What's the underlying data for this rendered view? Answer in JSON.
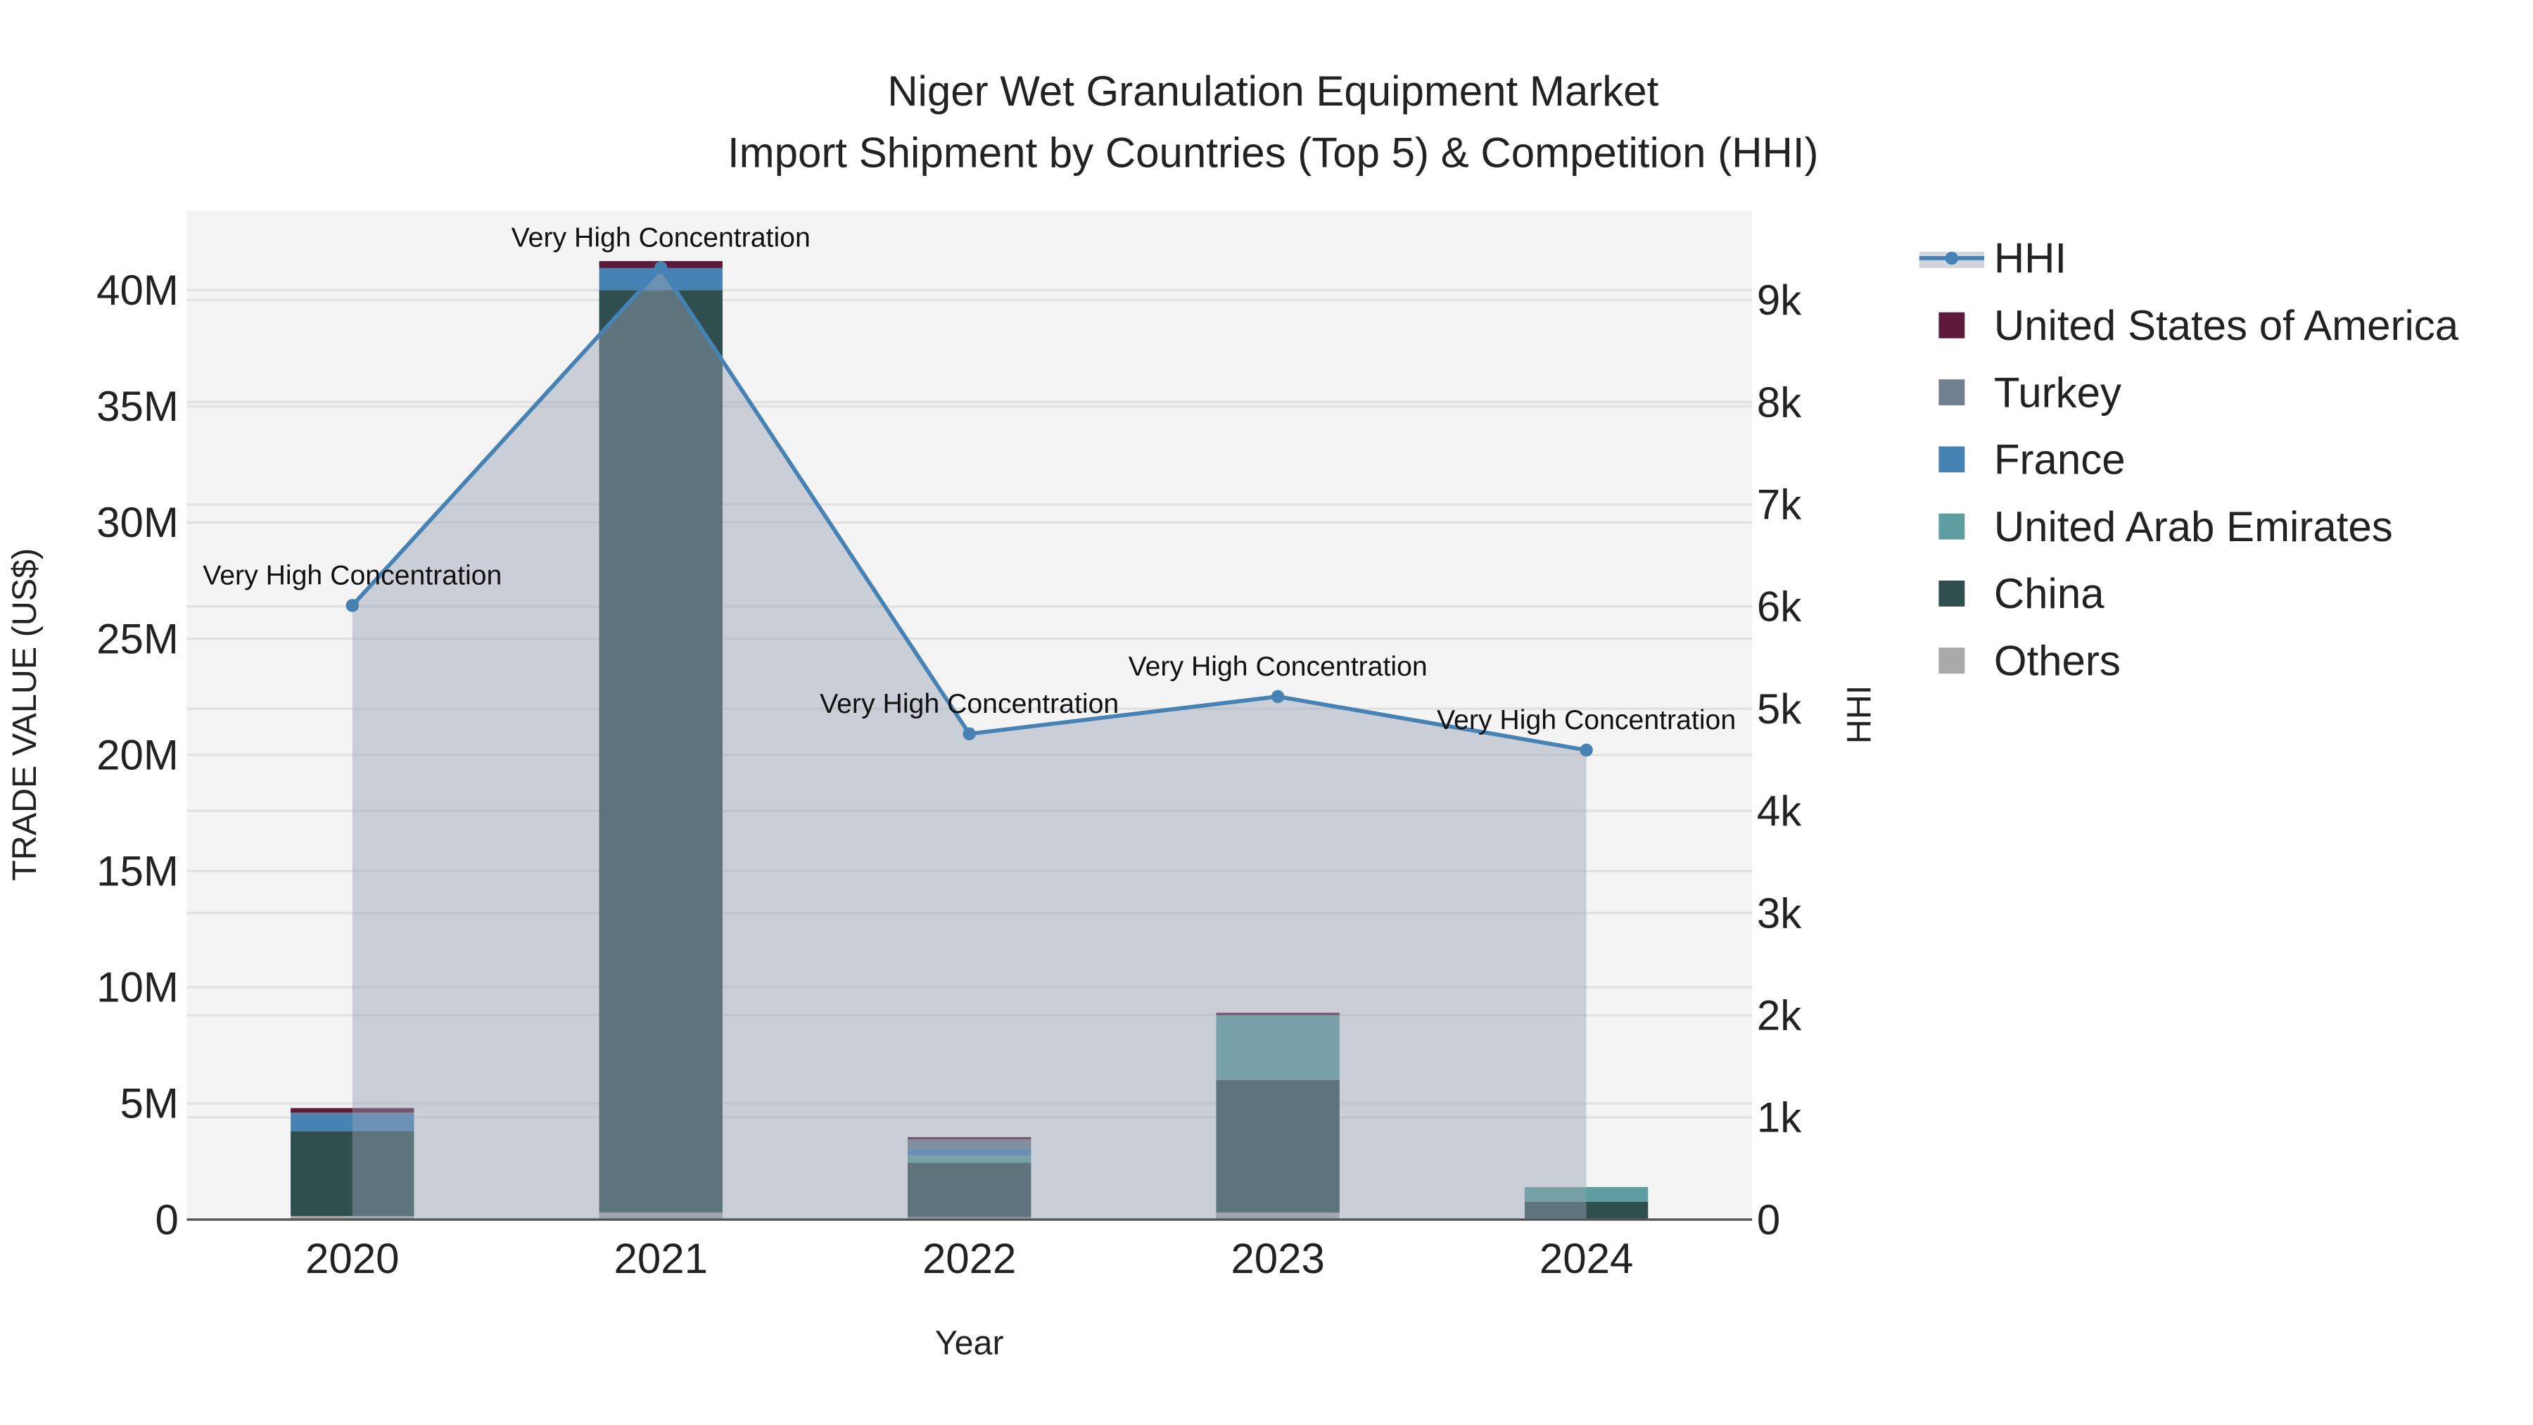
{
  "chart_data": {
    "type": "bar",
    "title": "Niger Wet Granulation Equipment Market",
    "subtitle": "Import Shipment by Countries (Top 5) & Competition (HHI)",
    "xlabel": "Year",
    "ylabel": "TRADE VALUE (US$)",
    "y2label": "HHI",
    "stacked": true,
    "categories": [
      "2020",
      "2021",
      "2022",
      "2023",
      "2024"
    ],
    "ylim": [
      0,
      43400000
    ],
    "y2lim": [
      0,
      9870
    ],
    "yticks": [
      {
        "v": 0,
        "label": "0"
      },
      {
        "v": 5000000,
        "label": "5M"
      },
      {
        "v": 10000000,
        "label": "10M"
      },
      {
        "v": 15000000,
        "label": "15M"
      },
      {
        "v": 20000000,
        "label": "20M"
      },
      {
        "v": 25000000,
        "label": "25M"
      },
      {
        "v": 30000000,
        "label": "30M"
      },
      {
        "v": 35000000,
        "label": "35M"
      },
      {
        "v": 40000000,
        "label": "40M"
      }
    ],
    "y2ticks": [
      {
        "v": 0,
        "label": "0"
      },
      {
        "v": 1000,
        "label": "1k"
      },
      {
        "v": 2000,
        "label": "2k"
      },
      {
        "v": 3000,
        "label": "3k"
      },
      {
        "v": 4000,
        "label": "4k"
      },
      {
        "v": 5000,
        "label": "5k"
      },
      {
        "v": 6000,
        "label": "6k"
      },
      {
        "v": 7000,
        "label": "7k"
      },
      {
        "v": 8000,
        "label": "8k"
      },
      {
        "v": 9000,
        "label": "9k"
      }
    ],
    "series": [
      {
        "name": "Others",
        "color": "#a9a9a9",
        "values": [
          150000,
          300000,
          100000,
          300000,
          50000
        ]
      },
      {
        "name": "China",
        "color": "#2f4f4f",
        "values": [
          3650000,
          39700000,
          2350000,
          5700000,
          720000
        ]
      },
      {
        "name": "United Arab Emirates",
        "color": "#5f9ea0",
        "values": [
          0,
          0,
          300000,
          2800000,
          630000
        ]
      },
      {
        "name": "France",
        "color": "#4682b4",
        "values": [
          750000,
          950000,
          300000,
          0,
          0
        ]
      },
      {
        "name": "Turkey",
        "color": "#708090",
        "values": [
          50000,
          0,
          400000,
          0,
          0
        ]
      },
      {
        "name": "United States of America",
        "color": "#5e1a3a",
        "values": [
          200000,
          300000,
          100000,
          100000,
          0
        ]
      }
    ],
    "hhi": {
      "name": "HHI",
      "color": "#4682b4",
      "values": [
        6010,
        9316,
        4754,
        5119,
        4595
      ],
      "annotations": [
        "Very High Concentration",
        "Very High Concentration",
        "Very High Concentration",
        "Very High Concentration",
        "Very High Concentration"
      ]
    },
    "legend": [
      "HHI",
      "United States of America",
      "Turkey",
      "France",
      "United Arab Emirates",
      "China",
      "Others"
    ],
    "legend_position": "right",
    "grid": true
  }
}
